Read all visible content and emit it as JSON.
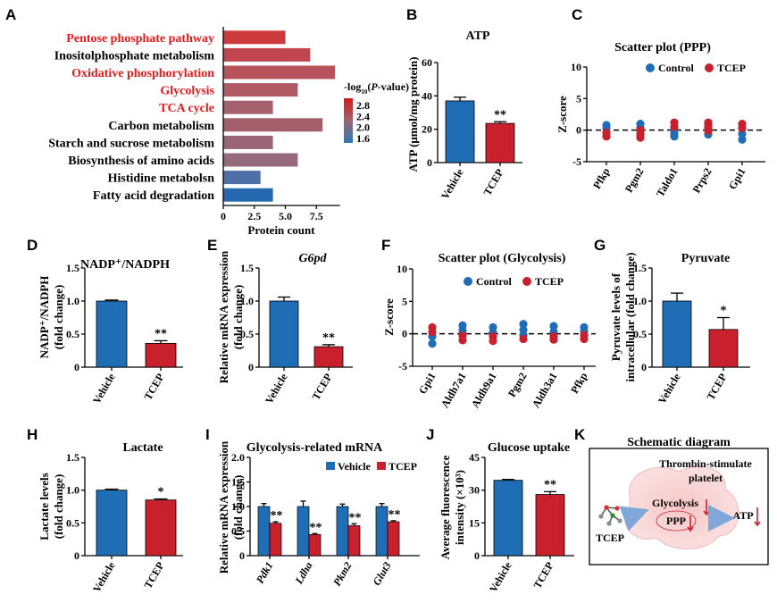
{
  "colors": {
    "blue": "#1F6DB5",
    "red": "#C9202E",
    "highlight": "#E31A1C",
    "axis": "#000000"
  },
  "panels": {
    "A": {
      "label": "A",
      "pathways": [
        {
          "name": "Pentose phosphate pathway",
          "count": 5,
          "highlight": true,
          "color": "#CC3A3E"
        },
        {
          "name": "Inositolphosphate metabolism",
          "count": 7,
          "highlight": false,
          "color": "#C0454E"
        },
        {
          "name": "Oxidative phosphorylation",
          "count": 9,
          "highlight": true,
          "color": "#B8535C"
        },
        {
          "name": "Glycolysis",
          "count": 6,
          "highlight": true,
          "color": "#B05A66"
        },
        {
          "name": "TCA cycle",
          "count": 4,
          "highlight": true,
          "color": "#A5616D"
        },
        {
          "name": "Carbon metabolism",
          "count": 8,
          "highlight": false,
          "color": "#A35F6C"
        },
        {
          "name": "Starch and sucrose metabolism",
          "count": 4,
          "highlight": false,
          "color": "#9A6677"
        },
        {
          "name": "Biosynthesis of amino acids",
          "count": 6,
          "highlight": false,
          "color": "#956A7B"
        },
        {
          "name": "Histidine metabolsn",
          "count": 3,
          "highlight": false,
          "color": "#4E6FA8"
        },
        {
          "name": "Fatty acid degradation",
          "count": 4,
          "highlight": false,
          "color": "#2568B0"
        }
      ],
      "xlabel": "Protein count",
      "xticks": [
        0,
        2.5,
        5,
        7.5
      ],
      "xtick_labels": [
        "0",
        "2.5",
        "5.0",
        "7.5"
      ],
      "xlim": [
        0,
        9.4
      ],
      "legend_title_pre": "-log",
      "legend_title_sub": "10",
      "legend_title_mid": "(",
      "legend_title_it": "P",
      "legend_title_post": "-value)",
      "legend_ticks": [
        "2.8",
        "2.4",
        "2.0",
        "1.6"
      ]
    },
    "B": {
      "label": "B",
      "title": "ATP",
      "ylabel": "ATP (μmol/mg protein)",
      "yticks": [
        "0",
        "20",
        "40",
        "60"
      ],
      "categories": [
        "Vehicle",
        "TCEP"
      ],
      "values": [
        37,
        23.5
      ],
      "errors": [
        2.2,
        1
      ],
      "sig": "**"
    },
    "C": {
      "label": "C",
      "title": "Scatter plot (PPP)",
      "ylabel": "Z-score",
      "yticks": [
        "-5",
        "0",
        "5",
        "10"
      ],
      "genes": [
        "Pfkp",
        "Pgm2",
        "Taldo1",
        "Prps2",
        "Gpi1"
      ],
      "legend": [
        "Control",
        "TCEP"
      ],
      "control": [
        [
          0.8,
          0.3,
          -0.4
        ],
        [
          1.0,
          0.4,
          -0.6
        ],
        [
          0.1,
          -0.5,
          -1.0
        ],
        [
          0.8,
          0.2,
          -0.7
        ],
        [
          0.3,
          -0.6,
          -1.5
        ]
      ],
      "tcep": [
        [
          -0.4,
          -1.0
        ],
        [
          0.0,
          -0.7,
          -1.2
        ],
        [
          1.2,
          0.5
        ],
        [
          1.2,
          0.9,
          0.4,
          -0.1
        ],
        [
          1.0,
          0.3
        ]
      ]
    },
    "D": {
      "label": "D",
      "title": "NADP⁺/NADPH",
      "ylabel1": "NADP⁺/NADPH",
      "ylabel2": "(fold change)",
      "yticks": [
        "0",
        "0.5",
        "1.0",
        "1.5"
      ],
      "categories": [
        "Vehicle",
        "TCEP"
      ],
      "values": [
        1.0,
        0.36
      ],
      "errors": [
        0.015,
        0.04
      ],
      "sig": "**"
    },
    "E": {
      "label": "E",
      "title": "G6pd",
      "ylabel1": "Relative mRNA expression",
      "ylabel2": "(fold change)",
      "yticks": [
        "0",
        "0.5",
        "1.0",
        "1.5"
      ],
      "categories": [
        "Vehicle",
        "TCEP"
      ],
      "values": [
        1.0,
        0.31
      ],
      "errors": [
        0.06,
        0.03
      ],
      "sig": "**"
    },
    "F": {
      "label": "F",
      "title": "Scatter plot (Glycolysis)",
      "ylabel": "Z-score",
      "yticks": [
        "-5",
        "0",
        "5",
        "10"
      ],
      "genes": [
        "Gpi1",
        "Aldh7a1",
        "Aldh9a1",
        "Pgm2",
        "Aldh3a1",
        "Pfkp"
      ],
      "legend": [
        "Control",
        "TCEP"
      ],
      "control": [
        [
          -0.4,
          -1.5
        ],
        [
          1.3,
          0.5
        ],
        [
          1.0,
          0.2
        ],
        [
          1.5,
          0.6,
          -0.2
        ],
        [
          1.2,
          0.3
        ],
        [
          1.0,
          0.4
        ]
      ],
      "tcep": [
        [
          1.0,
          0.3
        ],
        [
          -0.3,
          -1.0
        ],
        [
          -0.4,
          -1.1
        ],
        [
          -0.8
        ],
        [
          -0.4,
          -0.9
        ],
        [
          -0.2,
          -0.8
        ]
      ]
    },
    "G": {
      "label": "G",
      "title": "Pyruvate",
      "ylabel1": "Pyruvate levels of",
      "ylabel2": "intracellular (fold change)",
      "yticks": [
        "0",
        "0.5",
        "1.0",
        "1.5"
      ],
      "categories": [
        "Vehicle",
        "TCEP"
      ],
      "values": [
        1.0,
        0.57
      ],
      "errors": [
        0.12,
        0.18
      ],
      "sig": "*"
    },
    "H": {
      "label": "H",
      "title": "Lactate",
      "ylabel1": "Lactate levels",
      "ylabel2": "(fold change)",
      "yticks": [
        "0",
        "0.5",
        "1.0",
        "1.5"
      ],
      "categories": [
        "Vehicle",
        "TCEP"
      ],
      "values": [
        1.0,
        0.85
      ],
      "errors": [
        0.015,
        0.015
      ],
      "sig": "*"
    },
    "I": {
      "label": "I",
      "title": "Glycolysis-related mRNA",
      "ylabel1": "Relative mRNA expression",
      "ylabel2": "(fold change)",
      "yticks": [
        "0",
        "0.5",
        "1.0",
        "1.5",
        "2.0"
      ],
      "categories": [
        "Pdk1",
        "Ldha",
        "Pkm2",
        "Glut3"
      ],
      "legend": [
        "Vehicle",
        "TCEP"
      ],
      "vehicle": [
        1.0,
        1.0,
        1.0,
        1.0
      ],
      "vehicle_err": [
        0.06,
        0.11,
        0.05,
        0.06
      ],
      "tcep": [
        0.66,
        0.43,
        0.61,
        0.69
      ],
      "tcep_err": [
        0.03,
        0.02,
        0.04,
        0.02
      ],
      "sig": "**"
    },
    "J": {
      "label": "J",
      "title": "Glucose uptake",
      "ylabel1": "Average fluorescence",
      "ylabel2": "intensity (×10³)",
      "yticks": [
        "0",
        "15",
        "30",
        "45"
      ],
      "categories": [
        "Vehicle",
        "TCEP"
      ],
      "values": [
        34.5,
        28
      ],
      "errors": [
        0.4,
        1.3
      ],
      "sig": "**"
    },
    "K": {
      "label": "K",
      "title": "Schematic diagram",
      "cell1": "Thrombin-stimulate",
      "cell2": "platelet",
      "glycolysis": "Glycolysis",
      "ppp": "PPP",
      "atp": "ATP",
      "tcep": "TCEP"
    }
  }
}
